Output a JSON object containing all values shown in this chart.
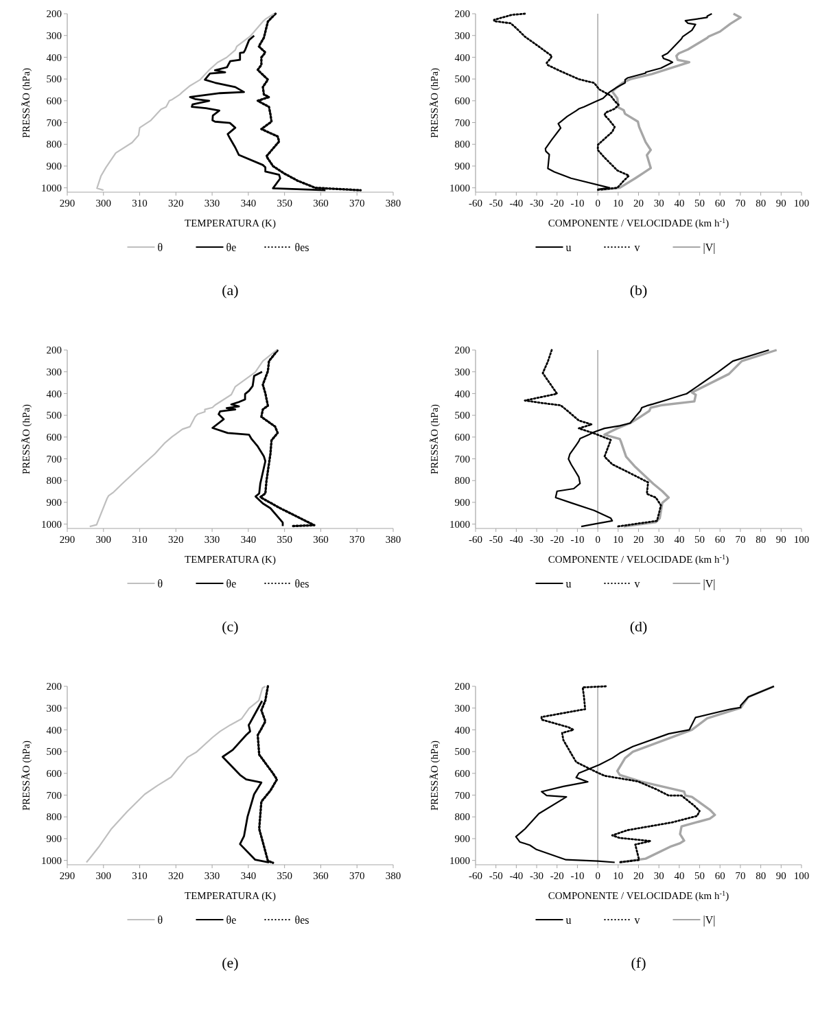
{
  "chart_data": [
    {
      "type": "line",
      "title": "(a)",
      "xlabel": "TEMPERATURA (K)",
      "ylabel": "PRESSÃO (hPa)",
      "xlim": [
        290,
        380
      ],
      "xticks": [
        290,
        300,
        310,
        320,
        330,
        340,
        350,
        360,
        370,
        380
      ],
      "ylim": [
        1020,
        200
      ],
      "yticks": [
        200,
        300,
        400,
        500,
        600,
        700,
        800,
        900,
        1000
      ],
      "legend": "bottom",
      "grid": false,
      "series": [
        {
          "name": "θ",
          "color": "#bfbfbf",
          "line_style": "solid",
          "x": [
            300,
            298.2,
            299.3,
            300.7,
            303.4,
            307.9,
            309.7,
            310,
            313.1,
            315.9,
            317.3,
            318.2,
            319,
            321.1,
            321.8,
            323.9,
            326.7,
            329.1,
            331.5,
            334,
            336.4,
            336.8,
            340.5,
            344,
            344.7,
            347.1
          ],
          "values": [
            1011,
            1002,
            946,
            906,
            840,
            792,
            758,
            724,
            690,
            639,
            628,
            600,
            594,
            571,
            560,
            531,
            503,
            460,
            424,
            401,
            367,
            350,
            304,
            236,
            225,
            200
          ]
        },
        {
          "name": "θe",
          "color": "#000000",
          "line_style": "solid",
          "x": [
            341.6,
            340.2,
            339.1,
            338.7,
            337.7,
            337.7,
            335,
            334.1,
            330.8,
            333.6,
            329.4,
            328,
            330.8,
            336.4,
            338.8,
            332.2,
            323.9,
            325.3,
            329.2,
            324.6,
            324.4,
            328.3,
            332,
            330.2,
            330.1,
            330.8,
            334.9,
            336.4,
            334.3,
            335,
            336.4,
            337.4,
            344,
            344.7,
            344.7,
            348.5,
            348.8,
            346.8,
            361.3
          ],
          "values": [
            301,
            321,
            367,
            378,
            380,
            412,
            418,
            446,
            460,
            469,
            475,
            503,
            517,
            537,
            560,
            565,
            583,
            592,
            600,
            617,
            628,
            634,
            645,
            668,
            690,
            696,
            702,
            724,
            753,
            775,
            815,
            849,
            895,
            906,
            925,
            940,
            957,
            1002,
            1011
          ]
        },
        {
          "name": "θes",
          "color": "#000000",
          "line_style": "dotted",
          "x": [
            347.5,
            345.4,
            344.3,
            342.9,
            344.7,
            343.6,
            343.6,
            342.6,
            345.4,
            344,
            344.3,
            345.7,
            342.6,
            345.7,
            346.1,
            346.4,
            343.6,
            348.1,
            348.5,
            345,
            346.8,
            349.9,
            353.7,
            358.5,
            371
          ],
          "values": [
            200,
            236,
            310,
            350,
            378,
            401,
            435,
            458,
            503,
            537,
            571,
            583,
            600,
            628,
            662,
            696,
            730,
            764,
            787,
            855,
            900,
            934,
            968,
            1000,
            1011
          ]
        }
      ]
    },
    {
      "type": "line",
      "title": "(b)",
      "xlabel": "COMPONENTE / VELOCIDADE (km h$^{-1}$)",
      "ylabel": "PRESSÃO (hPa)",
      "xlim": [
        -60,
        100
      ],
      "xticks": [
        -60,
        -50,
        -40,
        -30,
        -20,
        -10,
        0,
        10,
        20,
        30,
        40,
        50,
        60,
        70,
        80,
        90,
        100
      ],
      "ylim": [
        1020,
        200
      ],
      "yticks": [
        200,
        300,
        400,
        500,
        600,
        700,
        800,
        900,
        1000
      ],
      "legend": "bottom",
      "grid": false,
      "ref_lines": [
        {
          "axis": "x",
          "value": 0,
          "color": "#a6a6a6"
        }
      ],
      "series": [
        {
          "name": "u",
          "color": "#000000",
          "line_style": "solid",
          "x": [
            56,
            53.7,
            53.7,
            43,
            44.3,
            48,
            46.2,
            41.7,
            41.1,
            36.1,
            34.2,
            31.7,
            32.3,
            34.8,
            36.7,
            31,
            23.5,
            23.5,
            14.6,
            13.4,
            13.4,
            9,
            5.8,
            3.9,
            2.6,
            -1.1,
            -6.8,
            -9.3,
            -10.6,
            -15,
            -18.2,
            -19.4,
            -18.2,
            -22.6,
            -25.7,
            -25.5,
            -23.8,
            -24.5,
            -21.3,
            -13.1,
            5.8,
            0
          ],
          "values": [
            200,
            211,
            217,
            232,
            244,
            249,
            276,
            305,
            315,
            364,
            382,
            394,
            406,
            414,
            423,
            450,
            469,
            473,
            495,
            503,
            518,
            540,
            560,
            577,
            589,
            604,
            628,
            637,
            646,
            672,
            696,
            705,
            725,
            779,
            820,
            832,
            847,
            911,
            927,
            956,
            1000,
            1007
          ]
        },
        {
          "name": "v",
          "color": "#000000",
          "line_style": "dotted",
          "x": [
            -35.8,
            -42.1,
            -50.9,
            -50.9,
            -42.7,
            -39.6,
            -35.8,
            -29.5,
            -22.6,
            -23.2,
            -25.1,
            -24.5,
            -19.4,
            -9.3,
            -1.8,
            0.8,
            6.4,
            8.3,
            10.2,
            8.3,
            3.9,
            3.3,
            5.2,
            8.3,
            7.1,
            0.1,
            0,
            3.3,
            9.6,
            15.3,
            12.7,
            9.6,
            0.1
          ],
          "values": [
            200,
            205,
            228,
            234,
            244,
            270,
            305,
            347,
            394,
            406,
            426,
            436,
            459,
            501,
            518,
            548,
            577,
            601,
            619,
            637,
            654,
            666,
            684,
            720,
            743,
            802,
            826,
            861,
            920,
            944,
            968,
            1000,
            1009
          ]
        },
        {
          "name": "|V|",
          "color": "#a6a6a6",
          "line_style": "solid",
          "x": [
            66.6,
            70.1,
            68.2,
            65.1,
            60,
            54.4,
            53.7,
            44.3,
            39.8,
            38.6,
            39.2,
            42.4,
            44.9,
            34.8,
            26.6,
            16,
            12.1,
            7.1,
            8.3,
            9.6,
            10.2,
            12.7,
            13.4,
            19.7,
            20.3,
            23.5,
            26,
            24.1,
            26,
            22.2,
            18.4,
            10.8,
            1.4
          ],
          "values": [
            200,
            217,
            228,
            246,
            282,
            305,
            311,
            364,
            382,
            394,
            412,
            418,
            423,
            453,
            477,
            501,
            518,
            557,
            572,
            589,
            631,
            643,
            660,
            696,
            720,
            790,
            826,
            850,
            909,
            933,
            956,
            1000,
            1009
          ]
        }
      ]
    },
    {
      "type": "line",
      "title": "(c)",
      "xlabel": "TEMPERATURA (K)",
      "ylabel": "PRESSÃO (hPa)",
      "xlim": [
        290,
        380
      ],
      "xticks": [
        290,
        300,
        310,
        320,
        330,
        340,
        350,
        360,
        370,
        380
      ],
      "ylim": [
        1020,
        200
      ],
      "yticks": [
        200,
        300,
        400,
        500,
        600,
        700,
        800,
        900,
        1000
      ],
      "legend": "bottom",
      "grid": false,
      "series": [
        {
          "name": "θ",
          "color": "#bfbfbf",
          "line_style": "solid",
          "x": [
            296.2,
            298.1,
            301,
            301.4,
            302.8,
            305.2,
            310,
            314.2,
            317,
            319,
            321.8,
            323.9,
            325.3,
            326,
            328,
            328,
            330.1,
            330.8,
            335.3,
            336.4,
            341.9,
            344,
            347.8
          ],
          "values": [
            1011,
            1003,
            882,
            870,
            853,
            814,
            740,
            677,
            626,
            598,
            564,
            552,
            507,
            495,
            484,
            473,
            464,
            453,
            405,
            368,
            302,
            251,
            200
          ]
        },
        {
          "name": "θe",
          "color": "#000000",
          "line_style": "solid",
          "x": [
            343.8,
            341.6,
            341.2,
            340.2,
            339.1,
            339.1,
            337.4,
            335.3,
            337.4,
            334,
            336.4,
            332.2,
            331.8,
            333.2,
            330.1,
            334.3,
            340.2,
            340.9,
            342.6,
            344.3,
            344.7,
            343.3,
            343,
            342,
            344,
            346.1,
            349.5,
            349.5
          ],
          "values": [
            300,
            319,
            365,
            387,
            402,
            427,
            439,
            450,
            459,
            467,
            473,
            482,
            495,
            518,
            558,
            581,
            589,
            609,
            643,
            689,
            711,
            814,
            859,
            873,
            905,
            927,
            993,
            1009
          ]
        },
        {
          "name": "θes",
          "color": "#000000",
          "line_style": "dotted",
          "x": [
            348,
            345.7,
            345.4,
            344,
            344.7,
            345.4,
            344,
            343.6,
            347.4,
            348.1,
            346.4,
            346.1,
            345,
            344.7,
            343.3,
            348.8,
            358.2,
            352.3
          ],
          "values": [
            203,
            251,
            297,
            359,
            399,
            456,
            473,
            507,
            552,
            581,
            615,
            677,
            802,
            859,
            876,
            927,
            1005,
            1009
          ]
        }
      ]
    },
    {
      "type": "line",
      "title": "(d)",
      "xlabel": "COMPONENTE / VELOCIDADE (km h$^{-1}$)",
      "ylabel": "PRESSÃO (hPa)",
      "xlim": [
        -60,
        100
      ],
      "xticks": [
        -60,
        -50,
        -40,
        -30,
        -20,
        -10,
        0,
        10,
        20,
        30,
        40,
        50,
        60,
        70,
        80,
        90,
        100
      ],
      "ylim": [
        1020,
        200
      ],
      "yticks": [
        200,
        300,
        400,
        500,
        600,
        700,
        800,
        900,
        1000
      ],
      "legend": "bottom",
      "grid": false,
      "ref_lines": [
        {
          "axis": "x",
          "value": 0,
          "color": "#a6a6a6"
        }
      ],
      "series": [
        {
          "name": "u",
          "color": "#000000",
          "line_style": "solid",
          "x": [
            84,
            66.3,
            58.8,
            43.6,
            41.8,
            33.5,
            27.2,
            24.1,
            21.6,
            20.9,
            18.4,
            15.9,
            10.8,
            3.3,
            -1.8,
            -4.3,
            -8.7,
            -9.3,
            -10.6,
            -13.7,
            -14.4,
            -13.1,
            -9.3,
            -8.7,
            -11.8,
            -20,
            -20.7,
            -13.1,
            -1.8,
            6.4,
            7.1,
            -1.8,
            -8.1
          ],
          "values": [
            200,
            251,
            303,
            401,
            406,
            430,
            448,
            456,
            465,
            480,
            507,
            536,
            548,
            560,
            577,
            589,
            607,
            619,
            637,
            678,
            701,
            725,
            784,
            813,
            837,
            849,
            878,
            902,
            937,
            973,
            985,
            1000,
            1011
          ]
        },
        {
          "name": "v",
          "color": "#000000",
          "line_style": "dotted",
          "x": [
            -22.6,
            -24.5,
            -27,
            -20,
            -35.8,
            -27,
            -18.2,
            -14.4,
            -9.3,
            -3,
            -9.3,
            -1.8,
            6.4,
            3.3,
            7.1,
            14.6,
            24.7,
            24.1,
            28.5,
            31,
            29.1,
            9.6
          ],
          "values": [
            200,
            253,
            306,
            401,
            432,
            444,
            454,
            483,
            524,
            542,
            560,
            583,
            613,
            690,
            725,
            760,
            808,
            861,
            878,
            914,
            985,
            1011
          ]
        },
        {
          "name": "|V|",
          "color": "#a6a6a6",
          "line_style": "solid",
          "x": [
            87.8,
            70.7,
            64.4,
            46.2,
            48.1,
            47.4,
            31,
            26,
            25.3,
            20.9,
            15.9,
            9.6,
            3.3,
            10.8,
            11.3,
            13.9,
            18.4,
            27.2,
            31.7,
            34.8,
            31.7,
            30.4,
            28.5,
            12.7
          ],
          "values": [
            200,
            251,
            310,
            395,
            406,
            436,
            454,
            465,
            480,
            507,
            536,
            560,
            589,
            609,
            619,
            690,
            737,
            814,
            849,
            878,
            902,
            973,
            991,
            1011
          ]
        }
      ]
    },
    {
      "type": "line",
      "title": "(e)",
      "xlabel": "TEMPERATURA (K)",
      "ylabel": "PRESSÃO (hPa)",
      "xlim": [
        290,
        380
      ],
      "xticks": [
        290,
        300,
        310,
        320,
        330,
        340,
        350,
        360,
        370,
        380
      ],
      "ylim": [
        1020,
        200
      ],
      "yticks": [
        200,
        300,
        400,
        500,
        600,
        700,
        800,
        900,
        1000
      ],
      "legend": "bottom",
      "grid": false,
      "series": [
        {
          "name": "θ",
          "color": "#bfbfbf",
          "line_style": "solid",
          "x": [
            295.3,
            296.2,
            298.9,
            302.1,
            306.6,
            311.4,
            314.9,
            318.7,
            323.2,
            325.6,
            330.1,
            332.2,
            335,
            338.1,
            340.2,
            342.9,
            343.9,
            344.7
          ],
          "values": [
            1009,
            991,
            934,
            857,
            775,
            696,
            656,
            617,
            526,
            503,
            435,
            407,
            378,
            350,
            301,
            265,
            208,
            200
          ]
        },
        {
          "name": "θe",
          "color": "#000000",
          "line_style": "solid",
          "x": [
            343.8,
            340.5,
            340.1,
            340.5,
            339.4,
            335.7,
            332.9,
            337.7,
            339.4,
            343.6,
            341.6,
            339.8,
            338.8,
            337.7,
            341.9,
            345.7
          ],
          "values": [
            267,
            367,
            378,
            407,
            424,
            492,
            524,
            607,
            628,
            642,
            696,
            798,
            889,
            925,
            997,
            1009
          ]
        },
        {
          "name": "θes",
          "color": "#000000",
          "line_style": "dotted",
          "x": [
            345.4,
            344.7,
            343.6,
            344.7,
            343.6,
            342.6,
            343,
            346.8,
            347.9,
            346.1,
            343.6,
            343,
            344.3,
            345.4,
            346.8
          ],
          "values": [
            200,
            265,
            310,
            361,
            395,
            424,
            514,
            600,
            628,
            679,
            730,
            855,
            934,
            1002,
            1011
          ]
        }
      ]
    },
    {
      "type": "line",
      "title": "(f)",
      "xlabel": "COMPONENTE / VELOCIDADE (km h$^{-1}$)",
      "ylabel": "PRESSÃO (hPa)",
      "xlim": [
        -60,
        100
      ],
      "xticks": [
        -60,
        -50,
        -40,
        -30,
        -20,
        -10,
        0,
        10,
        20,
        30,
        40,
        50,
        60,
        70,
        80,
        90,
        100
      ],
      "ylim": [
        1020,
        200
      ],
      "yticks": [
        200,
        300,
        400,
        500,
        600,
        700,
        800,
        900,
        1000
      ],
      "legend": "bottom",
      "grid": false,
      "ref_lines": [
        {
          "axis": "x",
          "value": 0,
          "color": "#a6a6a6"
        }
      ],
      "series": [
        {
          "name": "u",
          "color": "#000000",
          "line_style": "solid",
          "x": [
            86.5,
            73.9,
            70.1,
            70.1,
            65.1,
            48,
            44.9,
            34.8,
            17.2,
            10.8,
            7.1,
            0.8,
            -9.3,
            -10.6,
            -4.9,
            -16.9,
            -27.6,
            -25.1,
            -15.4,
            -28.9,
            -35.8,
            -40.2,
            -38.3,
            -33.3,
            -30.1,
            -15.6,
            0.1,
            8.3
          ],
          "values": [
            200,
            249,
            288,
            297,
            305,
            343,
            400,
            418,
            477,
            507,
            530,
            560,
            599,
            619,
            639,
            660,
            684,
            702,
            708,
            785,
            856,
            891,
            915,
            930,
            950,
            997,
            1003,
            1009
          ]
        },
        {
          "name": "v",
          "color": "#000000",
          "line_style": "dotted",
          "x": [
            3.9,
            -7.4,
            -6.8,
            -6.2,
            -27.6,
            -27.6,
            -14.4,
            -11.9,
            -17.5,
            -16.9,
            -12.5,
            -10.6,
            -1.8,
            3.3,
            19.7,
            28.5,
            34.8,
            41.1,
            47.4,
            50,
            48.7,
            36.1,
            14.6,
            7.1,
            10.8,
            26,
            18.4,
            20.3,
            10.2
          ],
          "values": [
            200,
            205,
            246,
            305,
            341,
            353,
            388,
            400,
            414,
            447,
            518,
            548,
            589,
            611,
            637,
            672,
            702,
            702,
            749,
            773,
            796,
            826,
            861,
            885,
            897,
            911,
            927,
            998,
            1009
          ]
        },
        {
          "name": "|V|",
          "color": "#a6a6a6",
          "line_style": "solid",
          "x": [
            86.5,
            73.9,
            70.1,
            53.7,
            46.2,
            17.2,
            13.4,
            9.6,
            10.8,
            21,
            42.4,
            43,
            46.2,
            55,
            57.5,
            55,
            41.1,
            40.4,
            42.4,
            40.4,
            36.1,
            23.5,
            10.8
          ],
          "values": [
            200,
            249,
            299,
            347,
            400,
            501,
            530,
            589,
            607,
            637,
            684,
            702,
            708,
            767,
            791,
            808,
            844,
            879,
            909,
            921,
            935,
            992,
            1009
          ]
        }
      ]
    }
  ]
}
